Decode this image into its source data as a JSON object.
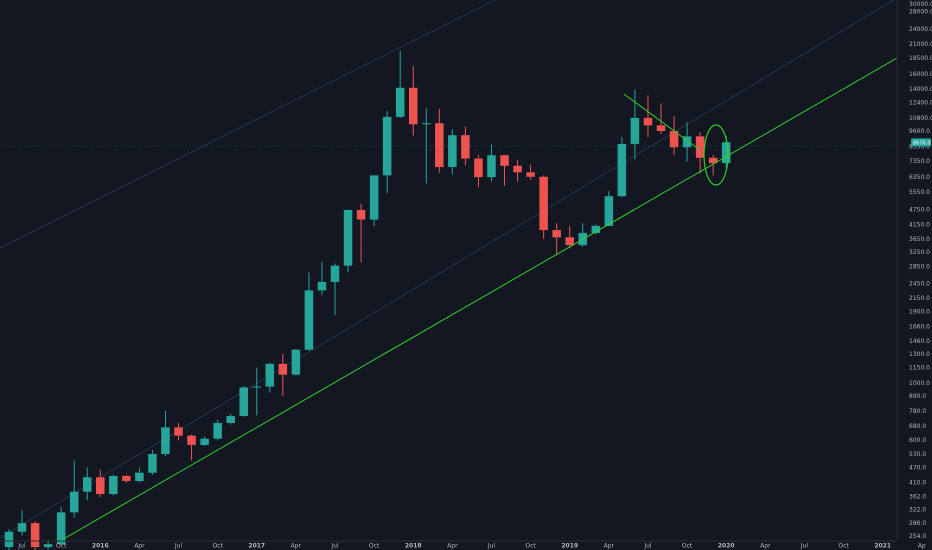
{
  "chart_data": {
    "type": "candlestick",
    "symbol": "BTC",
    "scale": "log",
    "background": "#131722",
    "colors": {
      "up": "#26a69a",
      "down": "#ef5350",
      "trendline": "#2fd128",
      "channel": "#2a3a52",
      "grid": "#1f2433",
      "axis_text": "#b2b5be"
    },
    "y_ticks": [
      "30000.0",
      "28000.0",
      "24000.0",
      "21000.0",
      "18500.0",
      "16000.0",
      "14000.0",
      "12400.0",
      "10800.0",
      "9600.0",
      "8350.0",
      "7350.0",
      "6350.0",
      "5550.0",
      "4750.0",
      "4150.0",
      "3650.0",
      "3250.0",
      "2850.0",
      "2450.0",
      "2150.0",
      "1900.0",
      "1660.0",
      "1460.0",
      "1300.0",
      "1150.0",
      "1000.0",
      "890.0",
      "780.0",
      "680.0",
      "600.0",
      "530.0",
      "470.0",
      "410.0",
      "362.0",
      "322.0",
      "286.0",
      "254.0"
    ],
    "x_ticks": [
      "Jul",
      "Oct",
      "2016",
      "Apr",
      "Jul",
      "Oct",
      "2017",
      "Apr",
      "Jul",
      "Oct",
      "2018",
      "Apr",
      "Jul",
      "Oct",
      "2019",
      "Apr",
      "Jul",
      "Oct",
      "2020",
      "Apr",
      "Jul",
      "Oct",
      "2021",
      "Ap"
    ],
    "last_price": "8676.0",
    "candles": [
      {
        "t": "2015-06",
        "o": 230,
        "h": 270,
        "l": 220,
        "c": 264
      },
      {
        "t": "2015-07",
        "o": 264,
        "h": 320,
        "l": 255,
        "c": 285
      },
      {
        "t": "2015-08",
        "o": 285,
        "h": 290,
        "l": 200,
        "c": 230
      },
      {
        "t": "2015-09",
        "o": 230,
        "h": 245,
        "l": 225,
        "c": 236
      },
      {
        "t": "2015-10",
        "o": 236,
        "h": 330,
        "l": 235,
        "c": 314
      },
      {
        "t": "2015-11",
        "o": 314,
        "h": 500,
        "l": 300,
        "c": 378
      },
      {
        "t": "2015-12",
        "o": 378,
        "h": 470,
        "l": 350,
        "c": 430
      },
      {
        "t": "2016-01",
        "o": 430,
        "h": 460,
        "l": 360,
        "c": 370
      },
      {
        "t": "2016-02",
        "o": 370,
        "h": 440,
        "l": 365,
        "c": 435
      },
      {
        "t": "2016-03",
        "o": 435,
        "h": 440,
        "l": 410,
        "c": 416
      },
      {
        "t": "2016-04",
        "o": 416,
        "h": 470,
        "l": 410,
        "c": 448
      },
      {
        "t": "2016-05",
        "o": 448,
        "h": 550,
        "l": 440,
        "c": 530
      },
      {
        "t": "2016-06",
        "o": 530,
        "h": 780,
        "l": 520,
        "c": 673
      },
      {
        "t": "2016-07",
        "o": 673,
        "h": 700,
        "l": 600,
        "c": 625
      },
      {
        "t": "2016-08",
        "o": 625,
        "h": 630,
        "l": 500,
        "c": 575
      },
      {
        "t": "2016-09",
        "o": 575,
        "h": 620,
        "l": 570,
        "c": 608
      },
      {
        "t": "2016-10",
        "o": 608,
        "h": 720,
        "l": 600,
        "c": 700
      },
      {
        "t": "2016-11",
        "o": 700,
        "h": 760,
        "l": 690,
        "c": 745
      },
      {
        "t": "2016-12",
        "o": 745,
        "h": 975,
        "l": 740,
        "c": 963
      },
      {
        "t": "2017-01",
        "o": 963,
        "h": 1150,
        "l": 750,
        "c": 970
      },
      {
        "t": "2017-02",
        "o": 970,
        "h": 1200,
        "l": 920,
        "c": 1190
      },
      {
        "t": "2017-03",
        "o": 1190,
        "h": 1300,
        "l": 890,
        "c": 1080
      },
      {
        "t": "2017-04",
        "o": 1080,
        "h": 1360,
        "l": 1070,
        "c": 1350
      },
      {
        "t": "2017-05",
        "o": 1350,
        "h": 2700,
        "l": 1340,
        "c": 2300
      },
      {
        "t": "2017-06",
        "o": 2300,
        "h": 2970,
        "l": 2200,
        "c": 2480
      },
      {
        "t": "2017-07",
        "o": 2480,
        "h": 2920,
        "l": 1840,
        "c": 2870
      },
      {
        "t": "2017-08",
        "o": 2870,
        "h": 4750,
        "l": 2700,
        "c": 4730
      },
      {
        "t": "2017-09",
        "o": 4730,
        "h": 5000,
        "l": 2950,
        "c": 4340
      },
      {
        "t": "2017-10",
        "o": 4340,
        "h": 6450,
        "l": 4100,
        "c": 6450
      },
      {
        "t": "2017-11",
        "o": 6450,
        "h": 11500,
        "l": 5500,
        "c": 10900
      },
      {
        "t": "2017-12",
        "o": 10900,
        "h": 19700,
        "l": 10800,
        "c": 14150
      },
      {
        "t": "2018-01",
        "o": 14150,
        "h": 17200,
        "l": 9200,
        "c": 10200
      },
      {
        "t": "2018-02",
        "o": 10200,
        "h": 11800,
        "l": 6000,
        "c": 10300
      },
      {
        "t": "2018-03",
        "o": 10300,
        "h": 11700,
        "l": 6600,
        "c": 6950
      },
      {
        "t": "2018-04",
        "o": 6950,
        "h": 9750,
        "l": 6500,
        "c": 9250
      },
      {
        "t": "2018-05",
        "o": 9250,
        "h": 10000,
        "l": 7050,
        "c": 7500
      },
      {
        "t": "2018-06",
        "o": 7500,
        "h": 7750,
        "l": 5800,
        "c": 6350
      },
      {
        "t": "2018-07",
        "o": 6350,
        "h": 8500,
        "l": 6100,
        "c": 7730
      },
      {
        "t": "2018-08",
        "o": 7730,
        "h": 7750,
        "l": 5880,
        "c": 7030
      },
      {
        "t": "2018-09",
        "o": 7030,
        "h": 7400,
        "l": 6100,
        "c": 6630
      },
      {
        "t": "2018-10",
        "o": 6630,
        "h": 7100,
        "l": 6200,
        "c": 6370
      },
      {
        "t": "2018-11",
        "o": 6370,
        "h": 6450,
        "l": 3650,
        "c": 3950
      },
      {
        "t": "2018-12",
        "o": 3950,
        "h": 4200,
        "l": 3150,
        "c": 3700
      },
      {
        "t": "2019-01",
        "o": 3700,
        "h": 4100,
        "l": 3350,
        "c": 3450
      },
      {
        "t": "2019-02",
        "o": 3450,
        "h": 4200,
        "l": 3400,
        "c": 3850
      },
      {
        "t": "2019-03",
        "o": 3850,
        "h": 4150,
        "l": 3800,
        "c": 4100
      },
      {
        "t": "2019-04",
        "o": 4100,
        "h": 5600,
        "l": 4100,
        "c": 5350
      },
      {
        "t": "2019-05",
        "o": 5350,
        "h": 9100,
        "l": 5300,
        "c": 8550
      },
      {
        "t": "2019-06",
        "o": 8550,
        "h": 13900,
        "l": 7450,
        "c": 10800
      },
      {
        "t": "2019-07",
        "o": 10800,
        "h": 13200,
        "l": 9100,
        "c": 10100
      },
      {
        "t": "2019-08",
        "o": 10100,
        "h": 12300,
        "l": 9350,
        "c": 9600
      },
      {
        "t": "2019-09",
        "o": 9600,
        "h": 10950,
        "l": 7750,
        "c": 8300
      },
      {
        "t": "2019-10",
        "o": 8300,
        "h": 10400,
        "l": 7300,
        "c": 9150
      },
      {
        "t": "2019-11",
        "o": 9150,
        "h": 9500,
        "l": 6550,
        "c": 7550
      },
      {
        "t": "2019-12",
        "o": 7550,
        "h": 7750,
        "l": 6450,
        "c": 7200
      },
      {
        "t": "2020-01",
        "o": 7200,
        "h": 9200,
        "l": 6850,
        "c": 8676
      }
    ]
  }
}
